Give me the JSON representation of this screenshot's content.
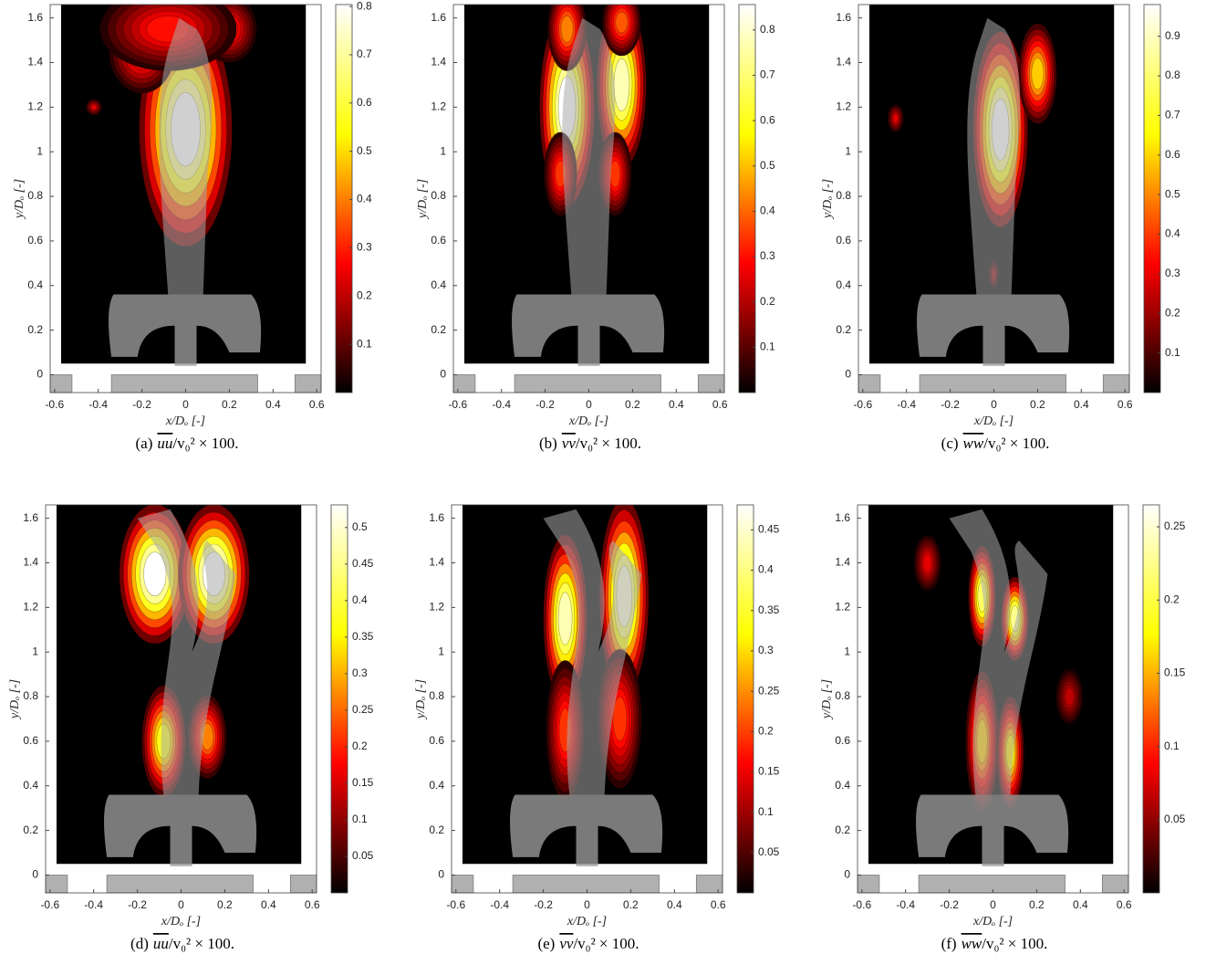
{
  "chart_data": [
    {
      "type": "contour",
      "caption": {
        "label": "(a)",
        "quantity": "uu",
        "rest": "/v₀² × 100."
      },
      "xlabel": "x/Dₒ [-]",
      "ylabel": "y/Dₒ [-]",
      "xlim": [
        -0.62,
        0.62
      ],
      "ylim": [
        -0.08,
        1.66
      ],
      "xticks": [
        -0.6,
        -0.4,
        -0.2,
        0,
        0.2,
        0.4,
        0.6
      ],
      "yticks": [
        0,
        0.2,
        0.4,
        0.6,
        0.8,
        1,
        1.2,
        1.4,
        1.6
      ],
      "clim": [
        0,
        0.804
      ],
      "cticks": [
        0.1,
        0.2,
        0.3,
        0.4,
        0.5,
        0.6,
        0.7,
        0.8
      ],
      "colormap": [
        "#000000",
        "#ff0000",
        "#ffff00",
        "#ffffff"
      ]
    },
    {
      "type": "contour",
      "caption": {
        "label": "(b)",
        "quantity": "vv",
        "rest": "/v₀² × 100."
      },
      "xlabel": "x/Dₒ [-]",
      "ylabel": "y/Dₒ [-]",
      "xlim": [
        -0.62,
        0.62
      ],
      "ylim": [
        -0.08,
        1.66
      ],
      "xticks": [
        -0.6,
        -0.4,
        -0.2,
        0,
        0.2,
        0.4,
        0.6
      ],
      "yticks": [
        0,
        0.2,
        0.4,
        0.6,
        0.8,
        1,
        1.2,
        1.4,
        1.6
      ],
      "clim": [
        0,
        0.856
      ],
      "cticks": [
        0.1,
        0.2,
        0.3,
        0.4,
        0.5,
        0.6,
        0.7,
        0.8
      ],
      "colormap": [
        "#000000",
        "#ff0000",
        "#ffff00",
        "#ffffff"
      ]
    },
    {
      "type": "contour",
      "caption": {
        "label": "(c)",
        "quantity": "ww",
        "rest": "/v₀² × 100."
      },
      "xlabel": "x/Dₒ [-]",
      "ylabel": "y/Dₒ [-]",
      "xlim": [
        -0.62,
        0.62
      ],
      "ylim": [
        -0.08,
        1.66
      ],
      "xticks": [
        -0.6,
        -0.4,
        -0.2,
        0,
        0.2,
        0.4,
        0.6
      ],
      "yticks": [
        0,
        0.2,
        0.4,
        0.6,
        0.8,
        1,
        1.2,
        1.4,
        1.6
      ],
      "clim": [
        0,
        0.98
      ],
      "cticks": [
        0.1,
        0.2,
        0.3,
        0.4,
        0.5,
        0.6,
        0.7,
        0.8,
        0.9
      ],
      "colormap": [
        "#000000",
        "#ff0000",
        "#ffff00",
        "#ffffff"
      ]
    },
    {
      "type": "contour",
      "caption": {
        "label": "(d)",
        "quantity": "uu",
        "rest": "/v₀² × 100."
      },
      "xlabel": "x/Dₒ [-]",
      "ylabel": "y/Dₒ [-]",
      "xlim": [
        -0.62,
        0.62
      ],
      "ylim": [
        -0.08,
        1.66
      ],
      "xticks": [
        -0.6,
        -0.4,
        -0.2,
        0,
        0.2,
        0.4,
        0.6
      ],
      "yticks": [
        0,
        0.2,
        0.4,
        0.6,
        0.8,
        1,
        1.2,
        1.4,
        1.6
      ],
      "clim": [
        0,
        0.531
      ],
      "cticks": [
        0.05,
        0.1,
        0.15,
        0.2,
        0.25,
        0.3,
        0.35,
        0.4,
        0.45,
        0.5
      ],
      "colormap": [
        "#000000",
        "#ff0000",
        "#ffff00",
        "#ffffff"
      ]
    },
    {
      "type": "contour",
      "caption": {
        "label": "(e)",
        "quantity": "vv",
        "rest": "/v₀² × 100."
      },
      "xlabel": "x/Dₒ [-]",
      "ylabel": "y/Dₒ [-]",
      "xlim": [
        -0.62,
        0.62
      ],
      "ylim": [
        -0.08,
        1.66
      ],
      "xticks": [
        -0.6,
        -0.4,
        -0.2,
        0,
        0.2,
        0.4,
        0.6
      ],
      "yticks": [
        0,
        0.2,
        0.4,
        0.6,
        0.8,
        1,
        1.2,
        1.4,
        1.6
      ],
      "clim": [
        0,
        0.481
      ],
      "cticks": [
        0.05,
        0.1,
        0.15,
        0.2,
        0.25,
        0.3,
        0.35,
        0.4,
        0.45
      ],
      "colormap": [
        "#000000",
        "#ff0000",
        "#ffff00",
        "#ffffff"
      ]
    },
    {
      "type": "contour",
      "caption": {
        "label": "(f)",
        "quantity": "ww",
        "rest": "/v₀² × 100."
      },
      "xlabel": "x/Dₒ [-]",
      "ylabel": "y/Dₒ [-]",
      "xlim": [
        -0.62,
        0.62
      ],
      "ylim": [
        -0.08,
        1.66
      ],
      "xticks": [
        -0.6,
        -0.4,
        -0.2,
        0,
        0.2,
        0.4,
        0.6
      ],
      "yticks": [
        0,
        0.2,
        0.4,
        0.6,
        0.8,
        1,
        1.2,
        1.4,
        1.6
      ],
      "clim": [
        0,
        0.265
      ],
      "cticks": [
        0.05,
        0.1,
        0.15,
        0.2,
        0.25
      ],
      "colormap": [
        "#000000",
        "#ff0000",
        "#ffff00",
        "#ffffff"
      ]
    }
  ]
}
